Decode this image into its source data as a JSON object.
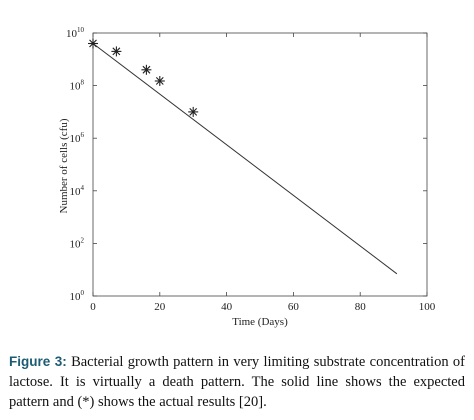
{
  "chart_data": {
    "type": "line",
    "xlabel": "Time (Days)",
    "ylabel": "Number of cells (cfu)",
    "xlim": [
      0,
      100
    ],
    "ylim_log10": [
      0,
      10
    ],
    "y_scale": "log",
    "grid": false,
    "x_ticks": [
      "0",
      "20",
      "40",
      "60",
      "80",
      "100"
    ],
    "y_ticks": [
      {
        "base": "10",
        "exp": "0"
      },
      {
        "base": "10",
        "exp": "2"
      },
      {
        "base": "10",
        "exp": "4"
      },
      {
        "base": "10",
        "exp": "6"
      },
      {
        "base": "10",
        "exp": "8"
      },
      {
        "base": "10",
        "exp": "10"
      }
    ],
    "series": [
      {
        "style": "solid-line",
        "x": [
          0,
          91
        ],
        "y": [
          4000000000,
          7
        ]
      },
      {
        "style": "asterisk-markers",
        "x": [
          0,
          7,
          16,
          20,
          30
        ],
        "y": [
          4000000000,
          2000000000,
          400000000,
          150000000,
          10000000
        ]
      }
    ]
  },
  "caption": {
    "label": "Figure 3:",
    "text": "Bacterial growth pattern in very limiting substrate concentration of lactose. It is virtually a death pattern. The solid line shows the expected pattern and (*) shows the actual results [20]."
  }
}
